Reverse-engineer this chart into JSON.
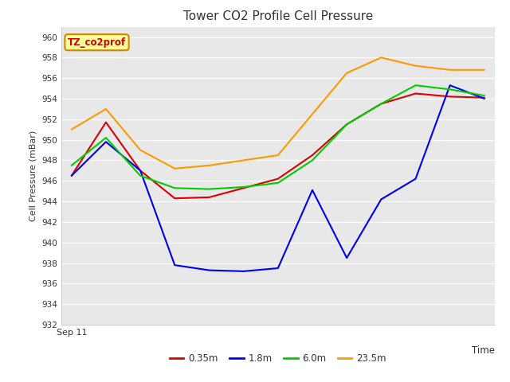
{
  "title": "Tower CO2 Profile Cell Pressure",
  "ylabel": "Cell Pressure (mBar)",
  "ylim": [
    932,
    961
  ],
  "fig_facecolor": "#ffffff",
  "plot_facecolor": "#e8e8e8",
  "grid_color": "#ffffff",
  "x_tick_label": "Sep 11",
  "x_axis_label": "Time",
  "legend_label": "TZ_co2prof",
  "legend_label_color": "#cc0000",
  "legend_box_facecolor": "#ffff99",
  "legend_box_edgecolor": "#cc8800",
  "series": [
    {
      "label": "0.35m",
      "color": "#dd0000",
      "x": [
        0,
        1,
        2,
        3,
        4,
        5,
        6,
        7,
        8,
        9,
        10,
        11,
        12
      ],
      "y": [
        946.5,
        951.7,
        947.0,
        944.3,
        944.4,
        945.3,
        946.2,
        948.5,
        951.5,
        953.5,
        954.5,
        954.2,
        954.1
      ]
    },
    {
      "label": "1.8m",
      "color": "#0000ee",
      "x": [
        0,
        1,
        2,
        3,
        4,
        5,
        6,
        7,
        8,
        9,
        10,
        11,
        12
      ],
      "y": [
        946.5,
        949.8,
        947.0,
        937.8,
        937.3,
        937.2,
        937.5,
        945.1,
        938.5,
        944.2,
        946.2,
        955.3,
        954.0
      ]
    },
    {
      "label": "6.0m",
      "color": "#00cc00",
      "x": [
        0,
        1,
        2,
        3,
        4,
        5,
        6,
        7,
        8,
        9,
        10,
        11,
        12
      ],
      "y": [
        947.5,
        950.2,
        946.5,
        945.3,
        945.2,
        945.4,
        945.8,
        948.0,
        951.5,
        953.5,
        955.3,
        954.9,
        954.3
      ]
    },
    {
      "label": "23.5m",
      "color": "#ff9900",
      "x": [
        0,
        1,
        2,
        3,
        4,
        5,
        6,
        7,
        8,
        9,
        10,
        11,
        12
      ],
      "y": [
        951.0,
        953.0,
        949.0,
        947.2,
        947.5,
        948.0,
        948.5,
        952.5,
        956.5,
        958.0,
        957.2,
        956.8,
        956.8
      ]
    }
  ]
}
